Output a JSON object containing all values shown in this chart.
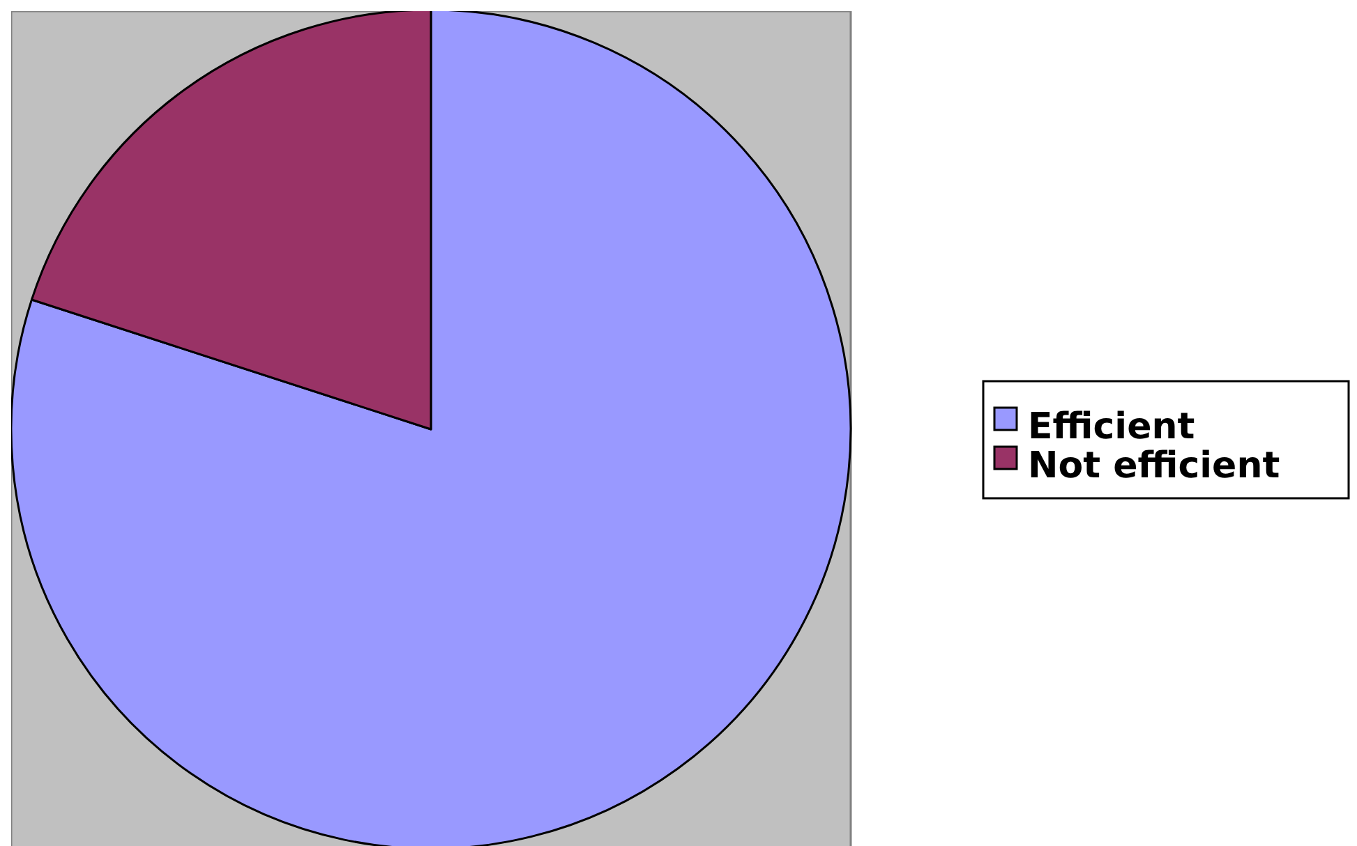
{
  "chart_data": {
    "type": "pie",
    "categories": [
      "Efficient",
      "Not efficient"
    ],
    "values": [
      80,
      20
    ],
    "colors": [
      "#9999ff",
      "#993366"
    ],
    "legend": "right"
  }
}
